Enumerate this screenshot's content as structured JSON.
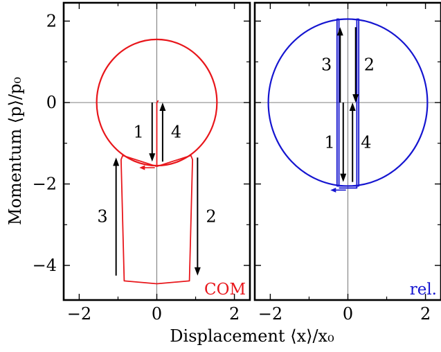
{
  "figure": {
    "xlabel": "Displacement ⟨x⟩/x₀",
    "ylabel": "Momentum ⟨p⟩/p₀"
  },
  "chart_data": [
    {
      "type": "line",
      "panel": "left",
      "corner_label": "COM",
      "color": "#e8161b",
      "xlim": [
        -2.4,
        2.4
      ],
      "ylim": [
        -4.85,
        2.45
      ],
      "x_ticks": [
        -2,
        0,
        2
      ],
      "x_tick_labels": [
        "−2",
        "0",
        "2"
      ],
      "y_ticks": [
        -4,
        -2,
        0,
        2
      ],
      "y_tick_labels": [
        "−4",
        "−2",
        "0",
        "2"
      ],
      "circle": {
        "center": [
          0,
          0
        ],
        "radius": 1.55
      },
      "path": {
        "x": [
          0.0,
          -0.88,
          -0.92,
          -0.84,
          0.0,
          0.84,
          0.92,
          0.88,
          0.0,
          0.0,
          0.04
        ],
        "y": [
          -1.57,
          -1.3,
          -1.4,
          -4.38,
          -4.45,
          -4.38,
          -1.4,
          -1.3,
          -1.57,
          0.0,
          0.05
        ]
      },
      "arrows": [
        {
          "x": -0.12,
          "y_from": 0.0,
          "y_to": -1.45,
          "label": "1"
        },
        {
          "x": 0.15,
          "y_from": -1.45,
          "y_to": 0.0,
          "label": "4"
        },
        {
          "x": 1.05,
          "y_from": -1.35,
          "y_to": -4.25,
          "label": "2"
        },
        {
          "x": -1.05,
          "y_from": -4.25,
          "y_to": -1.35,
          "label": "3"
        }
      ],
      "small_arrow": {
        "x_from": -0.05,
        "x_to": -0.45,
        "y": -1.6
      }
    },
    {
      "type": "line",
      "panel": "right",
      "corner_label": "rel.",
      "color": "#1515d0",
      "xlim": [
        -2.4,
        2.4
      ],
      "ylim": [
        -4.85,
        2.45
      ],
      "x_ticks": [
        -2,
        0,
        2
      ],
      "x_tick_labels": [
        "−2",
        "0",
        "2"
      ],
      "y_ticks": [
        -4,
        -2,
        0,
        2
      ],
      "y_tick_labels": [
        "",
        "",
        "",
        ""
      ],
      "circle": {
        "center": [
          0,
          0
        ],
        "radius": 2.05
      },
      "path": {
        "x": [
          -0.23,
          0.23,
          0.23,
          0.28,
          0.28,
          -0.23,
          -0.23,
          -0.28,
          -0.28,
          0.0
        ],
        "y": [
          -2.1,
          -2.1,
          2.05,
          2.05,
          -2.05,
          -2.05,
          2.05,
          2.05,
          -2.05,
          -2.05
        ]
      },
      "arrows": [
        {
          "x": 0.2,
          "y_from": 1.85,
          "y_to": 0.0,
          "label": "2"
        },
        {
          "x": -0.2,
          "y_from": 0.0,
          "y_to": 1.85,
          "label": "3"
        },
        {
          "x": -0.12,
          "y_from": 0.0,
          "y_to": -1.95,
          "label": "1"
        },
        {
          "x": 0.12,
          "y_from": -1.95,
          "y_to": 0.0,
          "label": "4"
        }
      ],
      "small_arrow": {
        "x_from": -0.05,
        "x_to": -0.45,
        "y": -2.15
      }
    }
  ]
}
